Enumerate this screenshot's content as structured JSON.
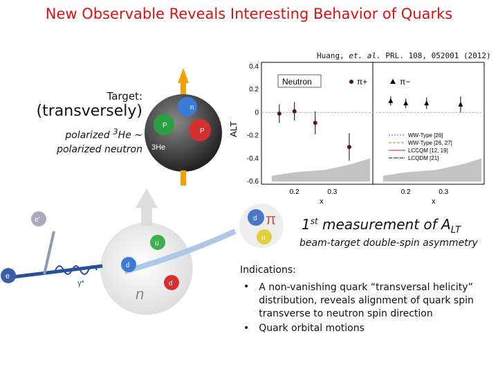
{
  "title": "New Observable Reveals Interesting Behavior of Quarks",
  "reference": {
    "authors": "Huang,",
    "et_al": "et. al.",
    "citation": "PRL. 108, 052001 (2012)"
  },
  "target": {
    "label": "Target:",
    "orientation": "(transversely)",
    "line1_pre": "polarized ",
    "he_mass": "3",
    "line1_post": "He ~",
    "line2": "polarized neutron"
  },
  "measurement": {
    "ordinal": "1",
    "ordinal_suffix": "st",
    "text": " measurement of A",
    "subscript": "LT",
    "subtitle": "beam-target double-spin asymmetry"
  },
  "indications": {
    "heading": "Indications:",
    "items": [
      "A non-vanishing quark “transversal helicity” distribution, reveals alignment of quark spin transverse to neutron spin direction",
      "Quark orbital motions"
    ],
    "bullet": "•"
  },
  "figure_labels": {
    "neutron_box": "Neutron",
    "pi_plus": "π+",
    "pi_minus": "π−",
    "y_axis": "ALT",
    "x_axis_left": "x",
    "x_axis_right": "x",
    "yticks": [
      "0.4",
      "0.2",
      "0",
      "-0.2",
      "-0.4",
      "-0.6"
    ],
    "xticks_left": [
      "0.2",
      "0.3"
    ],
    "xticks_right": [
      "0.2",
      "0.3"
    ],
    "legend": [
      "WW-Type [26]",
      "WW-Type [26, 27]",
      "LCCQM [12, 19]",
      "LCQDM [21]"
    ],
    "he3": "3He",
    "p": "P",
    "n": "n",
    "e_prime": "e'",
    "e": "e",
    "gamma": "γ*",
    "u": "u",
    "d": "d",
    "pion_d": "d",
    "pion_u": "u",
    "pion_symbol": "π",
    "neutron_n": "n"
  },
  "colors": {
    "title": "#dd1111",
    "data_points": "#5a1030",
    "sphere": "#555555",
    "spin_arrow": "#f2a200",
    "photon": "#2a4f9a"
  },
  "chart_data": {
    "type": "scatter",
    "panels": [
      {
        "name": "π+",
        "x": [
          0.16,
          0.2,
          0.255,
          0.345
        ],
        "y": [
          -0.01,
          0.01,
          -0.09,
          -0.3
        ],
        "yerr": [
          0.08,
          0.08,
          0.1,
          0.12
        ]
      },
      {
        "name": "π−",
        "x": [
          0.16,
          0.2,
          0.255,
          0.345
        ],
        "y": [
          0.1,
          0.08,
          0.08,
          0.07
        ],
        "yerr": [
          0.04,
          0.04,
          0.05,
          0.07
        ]
      }
    ],
    "ylim": [
      -0.6,
      0.4
    ],
    "xlim": [
      0.12,
      0.4
    ],
    "ylabel": "ALT",
    "xlabel": "x"
  }
}
